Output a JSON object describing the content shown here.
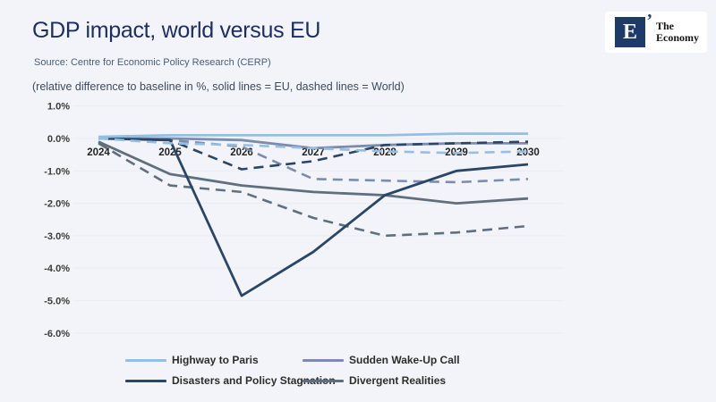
{
  "header": {
    "title": "GDP impact, world versus EU",
    "source": "Source: Centre for Economic Policy Research (CERP)",
    "subtitle": "(relative difference to baseline in %, solid lines = EU, dashed lines = World)"
  },
  "logo": {
    "letter": "E",
    "mark": "’",
    "name_line1": "The",
    "name_line2": "Economy",
    "square_color": "#1e3a68"
  },
  "colors": {
    "background": "#f3f4f9",
    "title": "#1c2e63",
    "highway": "#93bfe5",
    "sudden": "#7b8cad",
    "disasters": "#2a4666",
    "divergent": "#5f6f7e"
  },
  "chart_data": {
    "type": "line",
    "title": "GDP impact, world versus EU",
    "note": "relative difference to baseline in %, solid lines = EU, dashed lines = World",
    "x": [
      2024,
      2025,
      2026,
      2027,
      2028,
      2029,
      2030
    ],
    "x_tick_labels": [
      "2024",
      "2025",
      "2026",
      "2027",
      "2028",
      "2029",
      "2030"
    ],
    "ylim": [
      -6.5,
      1.0
    ],
    "grid": true,
    "legend_position": "bottom",
    "y_axis": {
      "ticks": [
        {
          "value": 1.0,
          "label": "1.0%"
        },
        {
          "value": 0.0,
          "label": "0.0%"
        },
        {
          "value": -1.0,
          "label": "-1.0%"
        },
        {
          "value": -2.0,
          "label": "-2.0%"
        },
        {
          "value": -3.0,
          "label": "-3.0%"
        },
        {
          "value": -4.0,
          "label": "-4.0%"
        },
        {
          "value": -5.0,
          "label": "-5.0%"
        },
        {
          "value": -6.0,
          "label": "-6.0%"
        }
      ]
    },
    "series": [
      {
        "name": "Divergent Realities",
        "region": "World",
        "line": "dashed",
        "color": "#5f6f7e",
        "values": [
          -0.15,
          -1.45,
          -1.65,
          -2.45,
          -3.0,
          -2.9,
          -2.7
        ]
      },
      {
        "name": "Divergent Realities",
        "region": "EU",
        "line": "solid",
        "color": "#5f6f7e",
        "values": [
          -0.1,
          -1.1,
          -1.45,
          -1.65,
          -1.75,
          -2.0,
          -1.85
        ]
      },
      {
        "name": "Sudden Wake-Up Call",
        "region": "World",
        "line": "dashed",
        "color": "#7b8cad",
        "values": [
          0.0,
          -0.05,
          -0.25,
          -1.25,
          -1.3,
          -1.35,
          -1.25
        ]
      },
      {
        "name": "Sudden Wake-Up Call",
        "region": "EU",
        "line": "solid",
        "color": "#7b8cad",
        "values": [
          0.0,
          0.0,
          -0.05,
          -0.3,
          -0.2,
          -0.15,
          -0.15
        ]
      },
      {
        "name": "Disasters and Policy Stagnation",
        "region": "World",
        "line": "dashed",
        "color": "#2a4666",
        "values": [
          0.0,
          -0.05,
          -0.95,
          -0.7,
          -0.2,
          -0.15,
          -0.1
        ]
      },
      {
        "name": "Disasters and Policy Stagnation",
        "region": "EU",
        "line": "solid",
        "color": "#2a4666",
        "values": [
          0.0,
          -0.05,
          -4.85,
          -3.5,
          -1.75,
          -1.0,
          -0.8
        ]
      },
      {
        "name": "Highway to Paris",
        "region": "World",
        "line": "dashed",
        "color": "#93bfe5",
        "values": [
          0.0,
          -0.15,
          -0.2,
          -0.3,
          -0.4,
          -0.45,
          -0.4
        ]
      },
      {
        "name": "Highway to Paris",
        "region": "EU",
        "line": "solid",
        "color": "#93bfe5",
        "values": [
          0.05,
          0.1,
          0.1,
          0.1,
          0.1,
          0.15,
          0.15
        ]
      }
    ],
    "legend": [
      {
        "label": "Highway to Paris",
        "color": "#93bfe5"
      },
      {
        "label": "Sudden Wake-Up Call",
        "color": "#7b8cad"
      },
      {
        "label": "Disasters and Policy Stagnation",
        "color": "#2a4666"
      },
      {
        "label": "Divergent Realities",
        "color": "#5f6f7e"
      }
    ]
  }
}
